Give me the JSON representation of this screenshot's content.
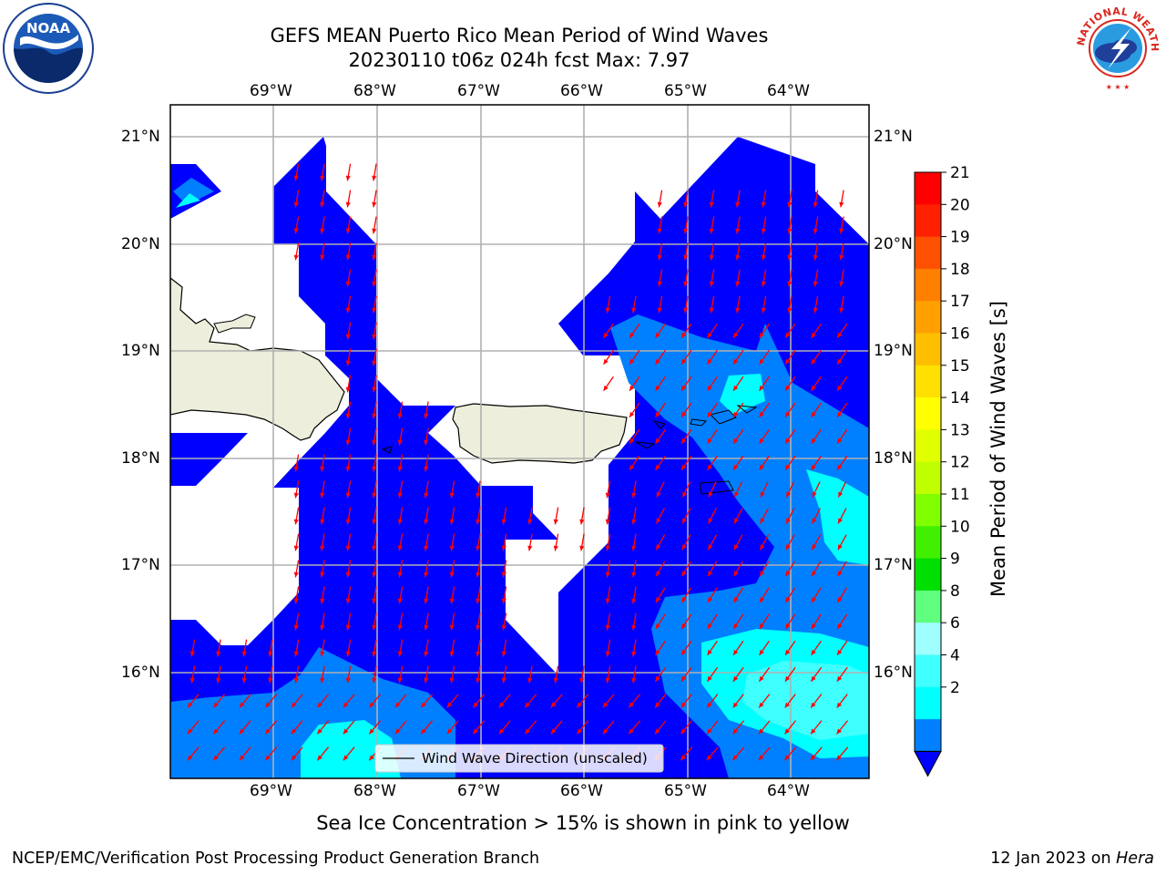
{
  "title": {
    "line1": "GEFS MEAN Puerto Rico Mean Period of Wind Waves",
    "line2": "20230110 t06z 024h fcst   Max: 7.97"
  },
  "axes": {
    "lon_labels": [
      "69°W",
      "68°W",
      "67°W",
      "66°W",
      "65°W",
      "64°W"
    ],
    "lat_labels": [
      "21°N",
      "20°N",
      "19°N",
      "18°N",
      "17°N",
      "16°N"
    ]
  },
  "colorbar": {
    "label": "Mean Period of Wind Waves [s]",
    "ticks": [
      "21",
      "20",
      "19",
      "18",
      "17",
      "16",
      "15",
      "14",
      "13",
      "12",
      "11",
      "10",
      "9",
      "8",
      "6",
      "4",
      "2"
    ],
    "colors": [
      "#ff0000",
      "#ff2000",
      "#ff4f00",
      "#ff7f00",
      "#ffa000",
      "#ffbf00",
      "#ffe000",
      "#ffff00",
      "#e0ff00",
      "#c0ff00",
      "#80ff00",
      "#40f000",
      "#00e000",
      "#60ff80",
      "#9fffff",
      "#40ffff",
      "#00ffff",
      "#0080ff",
      "#0000ff"
    ]
  },
  "legend": {
    "label": "Wind Wave Direction (unscaled)"
  },
  "caption": "Sea Ice Concentration > 15% is shown in pink to yellow",
  "footer": {
    "left": "NCEP/EMC/Verification Post Processing Product Generation Branch",
    "right_prefix": "12 Jan 2023 on ",
    "right_machine": "Hera"
  },
  "logos": {
    "noaa": "NOAA",
    "nws": "NATIONAL WEATHER SERVICE"
  },
  "map_colors": {
    "blue": "#0000ff",
    "mid_blue": "#0080ff",
    "cyan": "#00ffff",
    "light_cyan": "#40ffff",
    "land": "#eeeedc",
    "arrow": "#ff0000",
    "grid": "#b0b0b0"
  }
}
